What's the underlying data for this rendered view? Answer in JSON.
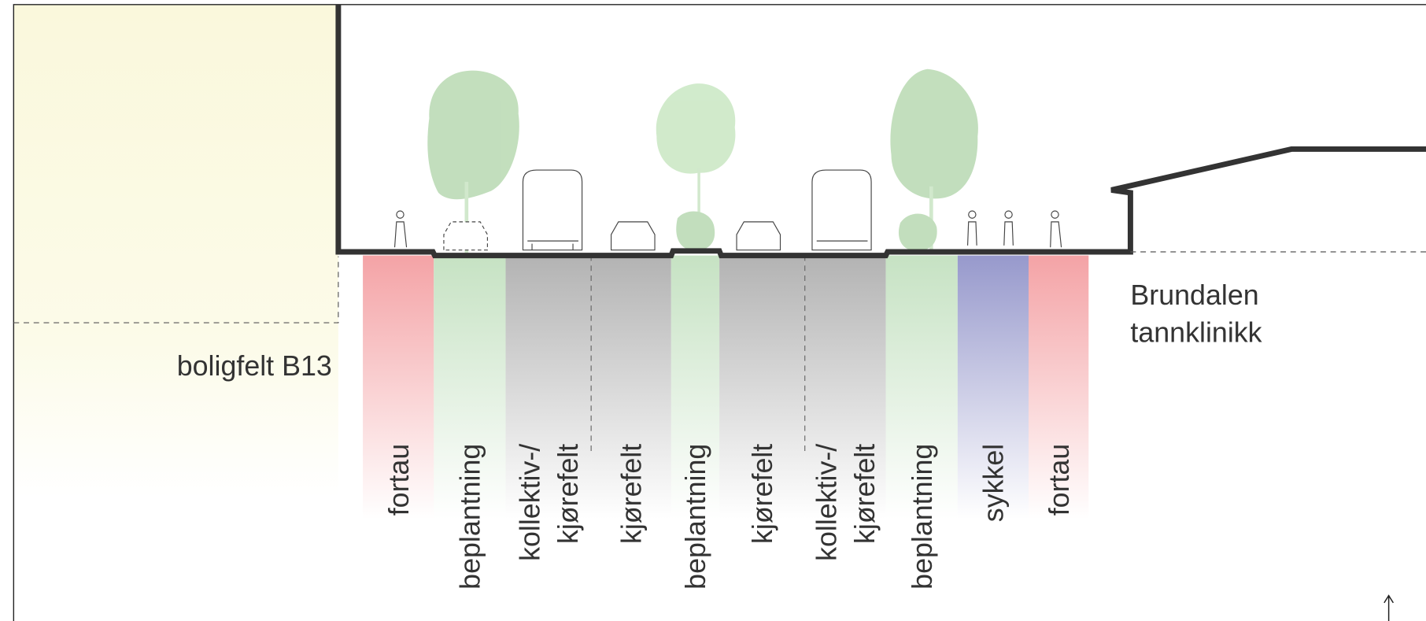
{
  "left_area": {
    "label": "boligfelt B13"
  },
  "right_area": {
    "label": [
      "Brundalen",
      "tannklinikk"
    ]
  },
  "lanes": [
    {
      "label": [
        "fortau"
      ],
      "color": "#f4a3a6"
    },
    {
      "label": [
        "beplantning"
      ],
      "color": "#c6e2c3"
    },
    {
      "label": [
        "kollektiv-/",
        "kjørefelt"
      ],
      "color": "#b3b3b3"
    },
    {
      "label": [
        "kjørefelt"
      ],
      "color": "#b3b3b3"
    },
    {
      "label": [
        "beplantning"
      ],
      "color": "#c6e2c3"
    },
    {
      "label": [
        "kjørefelt"
      ],
      "color": "#b3b3b3"
    },
    {
      "label": [
        "kollektiv-/",
        "kjørefelt"
      ],
      "color": "#b3b3b3"
    },
    {
      "label": [
        "beplantning"
      ],
      "color": "#c6e2c3"
    },
    {
      "label": [
        "sykkel"
      ],
      "color": "#9799cc"
    },
    {
      "label": [
        "fortau"
      ],
      "color": "#f4a3a6"
    }
  ]
}
